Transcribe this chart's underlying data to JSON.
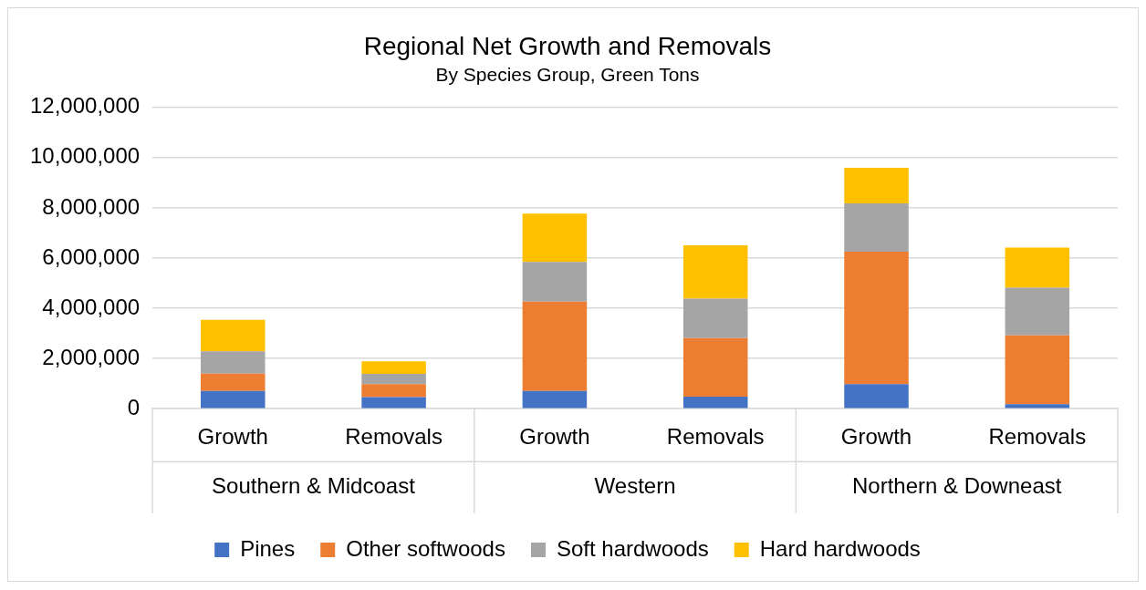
{
  "chart_data": {
    "type": "bar",
    "title": "Regional Net Growth and Removals",
    "subtitle": "By Species Group, Green Tons",
    "categories": [
      "Growth",
      "Removals",
      "Growth",
      "Removals",
      "Growth",
      "Removals"
    ],
    "annotations": [
      "Southern & Midcoast",
      "Western",
      "Northern & Downeast"
    ],
    "stacked": true,
    "series": [
      {
        "name": "Pines",
        "color": "#4472c4",
        "values": [
          710000,
          460000,
          710000,
          480000,
          980000,
          180000
        ]
      },
      {
        "name": "Other softwoods",
        "color": "#ed7d31",
        "values": [
          690000,
          520000,
          3560000,
          2330000,
          5270000,
          2740000
        ]
      },
      {
        "name": "Soft hardwoods",
        "color": "#a5a5a5",
        "values": [
          890000,
          410000,
          1580000,
          1570000,
          1930000,
          1900000
        ]
      },
      {
        "name": "Hard hardwoods",
        "color": "#ffc000",
        "values": [
          1250000,
          500000,
          1920000,
          2130000,
          1420000,
          1600000
        ]
      }
    ],
    "ylim": [
      0,
      12000000
    ],
    "yticks": [
      0,
      {
        "value": 2000000,
        "label": "2,000,000"
      },
      {
        "value": 4000000,
        "label": "4,000,000"
      },
      {
        "value": 6000000,
        "label": "6,000,000"
      },
      {
        "value": 8000000,
        "label": "8,000,000"
      },
      {
        "value": 10000000,
        "label": "10,000,000"
      },
      {
        "value": 12000000,
        "label": "12,000,000"
      }
    ],
    "grid": "y",
    "legend": "bottom"
  }
}
